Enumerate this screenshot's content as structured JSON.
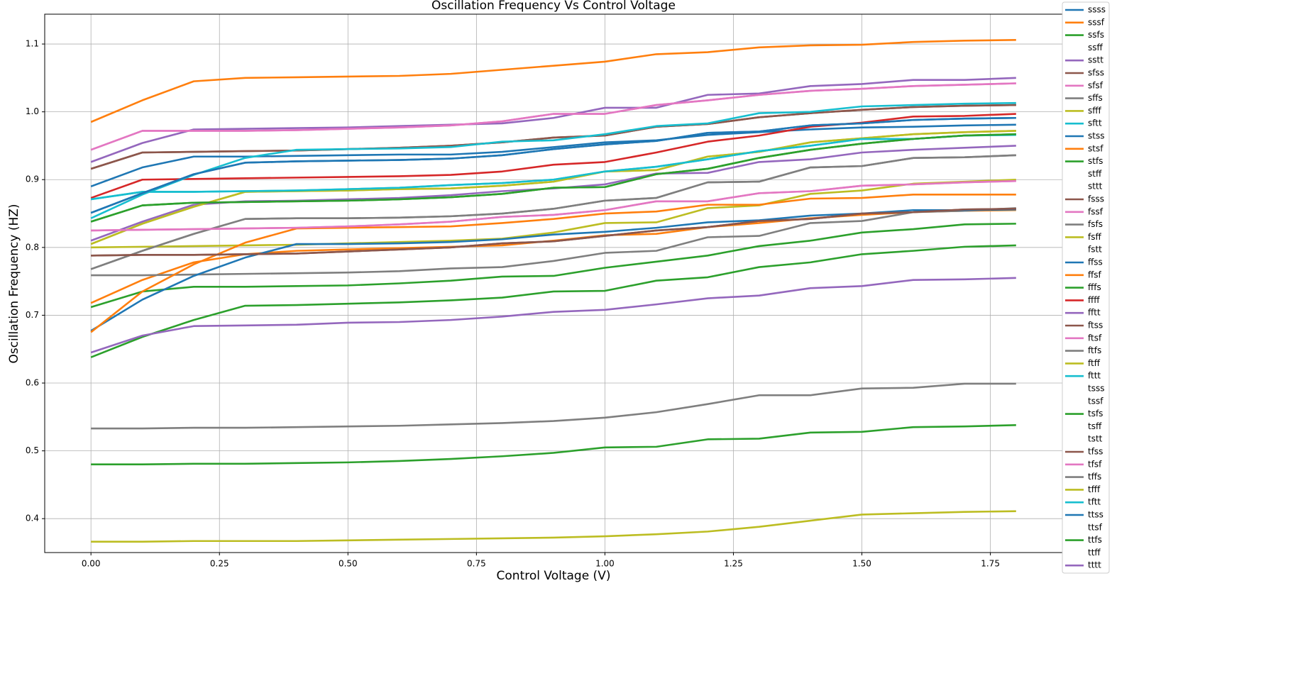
{
  "chart_data": {
    "type": "line",
    "title": "Oscillation Frequency Vs Control Voltage",
    "x_label": "Control Voltage (V)",
    "y_label": "Oscillation Frequency (HZ)",
    "x": [
      0,
      0.1,
      0.2,
      0.3,
      0.4,
      0.5,
      0.6,
      0.7,
      0.8,
      0.9,
      1.0,
      1.1,
      1.2,
      1.3,
      1.4,
      1.5,
      1.6,
      1.7,
      1.8
    ],
    "xlim": [
      -0.09,
      1.89
    ],
    "xticks": [
      {
        "value": 0,
        "label": "0.00"
      },
      {
        "value": 0.25,
        "label": "0.25"
      },
      {
        "value": 0.5,
        "label": "0.50"
      },
      {
        "value": 0.75,
        "label": "0.75"
      },
      {
        "value": 1,
        "label": "1.00"
      },
      {
        "value": 1.25,
        "label": "1.25"
      },
      {
        "value": 1.5,
        "label": "1.50"
      },
      {
        "value": 1.75,
        "label": "1.75"
      }
    ],
    "ylim": [
      0.35,
      1.144
    ],
    "yticks": [
      0.4,
      0.5,
      0.6,
      0.7,
      0.8,
      0.9,
      {
        "value": 1.0,
        "label": "1.0"
      },
      1.1
    ],
    "grid": true,
    "legend": "outside right",
    "series": [
      {
        "name": "ssss",
        "color": "#1f77b4",
        "values": [
          0.89,
          0.918,
          0.934,
          0.934,
          0.935,
          0.936,
          0.937,
          0.937,
          0.941,
          0.948,
          0.955,
          0.958,
          0.966,
          0.97,
          0.974,
          0.977,
          0.978,
          0.98,
          0.981
        ]
      },
      {
        "name": "sssf",
        "color": "#ff7f0e",
        "values": [
          0.985,
          1.017,
          1.045,
          1.05,
          1.051,
          1.052,
          1.053,
          1.056,
          1.062,
          1.068,
          1.074,
          1.085,
          1.088,
          1.095,
          1.098,
          1.099,
          1.103,
          1.105,
          1.106
        ]
      },
      {
        "name": "ssfs",
        "color": "#2ca02c",
        "values": [
          0.838,
          0.862,
          0.866,
          0.867,
          0.868,
          0.869,
          0.871,
          0.874,
          0.879,
          0.888,
          0.889,
          0.908,
          0.916,
          0.932,
          0.944,
          0.953,
          0.96,
          0.965,
          0.967
        ]
      },
      {
        "name": "ssff",
        "values": [
          null,
          null,
          null,
          null,
          null,
          null,
          null,
          null,
          null,
          null,
          null,
          null,
          null,
          null,
          null,
          null,
          null,
          null,
          null
        ]
      },
      {
        "name": "sstt",
        "color": "#9467bd",
        "values": [
          0.926,
          0.954,
          0.974,
          0.975,
          0.976,
          0.977,
          0.979,
          0.981,
          0.983,
          0.991,
          1.006,
          1.006,
          1.025,
          1.027,
          1.038,
          1.041,
          1.047,
          1.047,
          1.05
        ]
      },
      {
        "name": "sfss",
        "color": "#8c564b",
        "values": [
          0.916,
          0.94,
          0.941,
          0.942,
          0.943,
          0.945,
          0.947,
          0.95,
          0.955,
          0.962,
          0.965,
          0.978,
          0.982,
          0.992,
          0.998,
          1.003,
          1.007,
          1.009,
          1.01
        ]
      },
      {
        "name": "sfsf",
        "color": "#e377c2",
        "values": [
          0.944,
          0.972,
          0.972,
          0.972,
          0.973,
          0.975,
          0.977,
          0.98,
          0.986,
          0.997,
          0.997,
          1.01,
          1.017,
          1.025,
          1.031,
          1.034,
          1.038,
          1.04,
          1.042
        ]
      },
      {
        "name": "sffs",
        "color": "#7f7f7f",
        "values": [
          0.768,
          0.795,
          0.82,
          0.842,
          0.843,
          0.843,
          0.844,
          0.846,
          0.85,
          0.857,
          0.869,
          0.873,
          0.896,
          0.897,
          0.918,
          0.92,
          0.932,
          0.933,
          0.936
        ]
      },
      {
        "name": "sfff",
        "color": "#bcbd22",
        "values": [
          0.805,
          0.835,
          0.86,
          0.882,
          0.883,
          0.884,
          0.886,
          0.887,
          0.891,
          0.897,
          0.912,
          0.914,
          0.934,
          0.941,
          0.955,
          0.961,
          0.967,
          0.97,
          0.972
        ]
      },
      {
        "name": "sftt",
        "color": "#17becf",
        "values": [
          0.871,
          0.882,
          0.882,
          0.883,
          0.884,
          0.886,
          0.888,
          0.892,
          0.895,
          0.9,
          0.912,
          0.919,
          0.93,
          0.942,
          0.95,
          0.96,
          0.96,
          0.965,
          0.966
        ]
      },
      {
        "name": "stss",
        "color": "#1f77b4",
        "values": [
          0.851,
          0.88,
          0.908,
          0.925,
          0.927,
          0.928,
          0.929,
          0.931,
          0.936,
          0.945,
          0.952,
          0.957,
          0.969,
          0.971,
          0.98,
          0.983,
          0.988,
          0.99,
          0.991
        ]
      },
      {
        "name": "stsf",
        "color": "#ff7f0e",
        "values": [
          0.718,
          0.752,
          0.778,
          0.79,
          0.795,
          0.797,
          0.799,
          0.801,
          0.803,
          0.81,
          0.818,
          0.82,
          0.83,
          0.836,
          0.843,
          0.848,
          0.852,
          0.854,
          0.855
        ]
      },
      {
        "name": "stfs",
        "color": "#2ca02c",
        "values": [
          0.712,
          0.735,
          0.742,
          0.742,
          0.743,
          0.744,
          0.747,
          0.751,
          0.757,
          0.758,
          0.77,
          0.779,
          0.788,
          0.802,
          0.81,
          0.822,
          0.827,
          0.834,
          0.835
        ]
      },
      {
        "name": "stff",
        "values": [
          null,
          null,
          null,
          null,
          null,
          null,
          null,
          null,
          null,
          null,
          null,
          null,
          null,
          null,
          null,
          null,
          null,
          null,
          null
        ]
      },
      {
        "name": "sttt",
        "values": [
          null,
          null,
          null,
          null,
          null,
          null,
          null,
          null,
          null,
          null,
          null,
          null,
          null,
          null,
          null,
          null,
          null,
          null,
          null
        ]
      },
      {
        "name": "fsss",
        "color": "#8c564b",
        "values": [
          0.788,
          0.789,
          0.789,
          0.79,
          0.791,
          0.794,
          0.797,
          0.8,
          0.806,
          0.809,
          0.817,
          0.825,
          0.83,
          0.839,
          0.842,
          0.85,
          0.852,
          0.856,
          0.857
        ]
      },
      {
        "name": "fssf",
        "color": "#e377c2",
        "values": [
          0.825,
          0.826,
          0.827,
          0.828,
          0.829,
          0.831,
          0.834,
          0.838,
          0.845,
          0.848,
          0.855,
          0.868,
          0.868,
          0.88,
          0.883,
          0.891,
          0.893,
          0.896,
          0.898
        ]
      },
      {
        "name": "fsfs",
        "color": "#7f7f7f",
        "values": [
          0.759,
          0.759,
          0.76,
          0.761,
          0.762,
          0.763,
          0.765,
          0.769,
          0.771,
          0.78,
          0.792,
          0.795,
          0.815,
          0.817,
          0.836,
          0.839,
          0.852,
          0.854,
          0.858
        ]
      },
      {
        "name": "fsff",
        "color": "#bcbd22",
        "values": [
          0.8,
          0.801,
          0.802,
          0.803,
          0.804,
          0.806,
          0.808,
          0.81,
          0.813,
          0.822,
          0.836,
          0.837,
          0.858,
          0.862,
          0.879,
          0.884,
          0.894,
          0.897,
          0.9
        ]
      },
      {
        "name": "fstt",
        "values": [
          null,
          null,
          null,
          null,
          null,
          null,
          null,
          null,
          null,
          null,
          null,
          null,
          null,
          null,
          null,
          null,
          null,
          null,
          null
        ]
      },
      {
        "name": "ffss",
        "color": "#1f77b4",
        "values": [
          0.677,
          0.723,
          0.758,
          0.785,
          0.805,
          0.805,
          0.806,
          0.808,
          0.812,
          0.819,
          0.823,
          0.829,
          0.837,
          0.84,
          0.847,
          0.85,
          0.855,
          0.855,
          0.856
        ]
      },
      {
        "name": "ffsf",
        "color": "#ff7f0e",
        "values": [
          0.675,
          0.735,
          0.775,
          0.807,
          0.828,
          0.829,
          0.83,
          0.831,
          0.836,
          0.842,
          0.85,
          0.853,
          0.863,
          0.863,
          0.872,
          0.873,
          0.878,
          0.878,
          0.878
        ]
      },
      {
        "name": "fffs",
        "color": "#2ca02c",
        "values": [
          0.638,
          0.668,
          0.693,
          0.714,
          0.715,
          0.717,
          0.719,
          0.722,
          0.726,
          0.735,
          0.736,
          0.751,
          0.756,
          0.771,
          0.778,
          0.79,
          0.795,
          0.801,
          0.803
        ]
      },
      {
        "name": "ffff",
        "color": "#d62728",
        "values": [
          0.873,
          0.9,
          0.901,
          0.902,
          0.903,
          0.904,
          0.905,
          0.907,
          0.912,
          0.922,
          0.926,
          0.94,
          0.956,
          0.965,
          0.978,
          0.984,
          0.993,
          0.994,
          0.997
        ]
      },
      {
        "name": "fftt",
        "color": "#9467bd",
        "values": [
          0.81,
          0.838,
          0.863,
          0.868,
          0.869,
          0.871,
          0.873,
          0.877,
          0.883,
          0.887,
          0.893,
          0.909,
          0.91,
          0.926,
          0.93,
          0.94,
          0.944,
          0.947,
          0.95
        ]
      },
      {
        "name": "ftss",
        "color": "#8c564b",
        "values": [
          0.916,
          0.94,
          0.941,
          0.942,
          0.943,
          0.945,
          0.947,
          0.95,
          0.955,
          0.962,
          0.965,
          0.978,
          0.982,
          0.992,
          0.998,
          1.003,
          1.007,
          1.009,
          1.01
        ]
      },
      {
        "name": "ftsf",
        "color": "#e377c2",
        "values": [
          0.944,
          0.972,
          0.972,
          0.972,
          0.973,
          0.975,
          0.977,
          0.98,
          0.986,
          0.997,
          0.997,
          1.01,
          1.017,
          1.025,
          1.031,
          1.034,
          1.038,
          1.04,
          1.042
        ]
      },
      {
        "name": "ftfs",
        "color": "#7f7f7f",
        "values": [
          0.768,
          0.795,
          0.82,
          0.842,
          0.843,
          0.843,
          0.844,
          0.846,
          0.85,
          0.857,
          0.869,
          0.873,
          0.896,
          0.897,
          0.918,
          0.92,
          0.932,
          0.933,
          0.936
        ]
      },
      {
        "name": "ftff",
        "color": "#bcbd22",
        "values": [
          0.805,
          0.835,
          0.86,
          0.882,
          0.883,
          0.884,
          0.886,
          0.887,
          0.891,
          0.897,
          0.912,
          0.914,
          0.934,
          0.941,
          0.955,
          0.961,
          0.967,
          0.97,
          0.972
        ]
      },
      {
        "name": "fttt",
        "color": "#17becf",
        "values": [
          0.843,
          0.878,
          0.907,
          0.932,
          0.944,
          0.945,
          0.946,
          0.948,
          0.956,
          0.958,
          0.967,
          0.979,
          0.983,
          0.998,
          1.0,
          1.008,
          1.01,
          1.012,
          1.013
        ]
      },
      {
        "name": "tsss",
        "values": [
          null,
          null,
          null,
          null,
          null,
          null,
          null,
          null,
          null,
          null,
          null,
          null,
          null,
          null,
          null,
          null,
          null,
          null,
          null
        ]
      },
      {
        "name": "tssf",
        "values": [
          null,
          null,
          null,
          null,
          null,
          null,
          null,
          null,
          null,
          null,
          null,
          null,
          null,
          null,
          null,
          null,
          null,
          null,
          null
        ]
      },
      {
        "name": "tsfs",
        "color": "#2ca02c",
        "values": [
          0.48,
          0.48,
          0.481,
          0.481,
          0.482,
          0.483,
          0.485,
          0.488,
          0.492,
          0.497,
          0.505,
          0.506,
          0.517,
          0.518,
          0.527,
          0.528,
          0.535,
          0.536,
          0.538
        ]
      },
      {
        "name": "tsff",
        "values": [
          null,
          null,
          null,
          null,
          null,
          null,
          null,
          null,
          null,
          null,
          null,
          null,
          null,
          null,
          null,
          null,
          null,
          null,
          null
        ]
      },
      {
        "name": "tstt",
        "values": [
          null,
          null,
          null,
          null,
          null,
          null,
          null,
          null,
          null,
          null,
          null,
          null,
          null,
          null,
          null,
          null,
          null,
          null,
          null
        ]
      },
      {
        "name": "tfss",
        "color": "#8c564b",
        "values": [
          0.788,
          0.789,
          0.789,
          0.79,
          0.791,
          0.794,
          0.797,
          0.8,
          0.806,
          0.809,
          0.817,
          0.825,
          0.83,
          0.839,
          0.842,
          0.85,
          0.852,
          0.856,
          0.857
        ]
      },
      {
        "name": "tfsf",
        "color": "#e377c2",
        "values": [
          0.825,
          0.826,
          0.827,
          0.828,
          0.829,
          0.831,
          0.834,
          0.838,
          0.845,
          0.848,
          0.855,
          0.868,
          0.868,
          0.88,
          0.883,
          0.891,
          0.893,
          0.896,
          0.898
        ]
      },
      {
        "name": "tffs",
        "color": "#7f7f7f",
        "values": [
          0.533,
          0.533,
          0.534,
          0.534,
          0.535,
          0.536,
          0.537,
          0.539,
          0.541,
          0.544,
          0.549,
          0.557,
          0.569,
          0.582,
          0.582,
          0.592,
          0.593,
          0.599,
          0.599
        ]
      },
      {
        "name": "tfff",
        "color": "#bcbd22",
        "values": [
          0.366,
          0.366,
          0.367,
          0.367,
          0.367,
          0.368,
          0.369,
          0.37,
          0.371,
          0.372,
          0.374,
          0.377,
          0.381,
          0.388,
          0.397,
          0.406,
          0.408,
          0.41,
          0.411
        ]
      },
      {
        "name": "tftt",
        "color": "#17becf",
        "values": [
          0.871,
          0.882,
          0.882,
          0.883,
          0.884,
          0.886,
          0.888,
          0.892,
          0.895,
          0.9,
          0.912,
          0.919,
          0.93,
          0.942,
          0.95,
          0.96,
          0.96,
          0.965,
          0.966
        ]
      },
      {
        "name": "ttss",
        "color": "#1f77b4",
        "values": [
          0.851,
          0.88,
          0.908,
          0.925,
          0.927,
          0.928,
          0.929,
          0.931,
          0.936,
          0.945,
          0.952,
          0.957,
          0.969,
          0.971,
          0.98,
          0.983,
          0.988,
          0.99,
          0.991
        ]
      },
      {
        "name": "ttsf",
        "values": [
          null,
          null,
          null,
          null,
          null,
          null,
          null,
          null,
          null,
          null,
          null,
          null,
          null,
          null,
          null,
          null,
          null,
          null,
          null
        ]
      },
      {
        "name": "ttfs",
        "color": "#2ca02c",
        "values": [
          0.838,
          0.862,
          0.866,
          0.867,
          0.868,
          0.869,
          0.871,
          0.874,
          0.879,
          0.888,
          0.889,
          0.908,
          0.916,
          0.932,
          0.944,
          0.953,
          0.96,
          0.965,
          0.967
        ]
      },
      {
        "name": "ttff",
        "values": [
          null,
          null,
          null,
          null,
          null,
          null,
          null,
          null,
          null,
          null,
          null,
          null,
          null,
          null,
          null,
          null,
          null,
          null,
          null
        ]
      },
      {
        "name": "tttt",
        "color": "#9467bd",
        "values": [
          0.645,
          0.67,
          0.684,
          0.685,
          0.686,
          0.689,
          0.69,
          0.693,
          0.698,
          0.705,
          0.708,
          0.716,
          0.725,
          0.729,
          0.74,
          0.743,
          0.752,
          0.753,
          0.755
        ]
      }
    ]
  }
}
